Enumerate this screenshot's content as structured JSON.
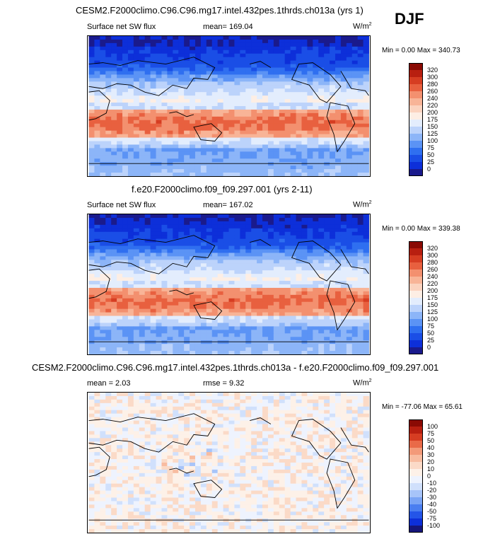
{
  "season": "DJF",
  "panels": [
    {
      "title": "CESM2.F2000climo.C96.C96.mg17.intel.432pes.1thrds.ch013a (yrs 1)",
      "left_label": "Surface net SW flux",
      "center_label": "mean= 169.04",
      "units": "W/m",
      "units_sup": "2",
      "minmax": "Min =   0.00 Max = 340.73",
      "colorbar_labels": [
        "320",
        "300",
        "280",
        "260",
        "240",
        "220",
        "200",
        "175",
        "150",
        "125",
        "100",
        "75",
        "50",
        "25",
        "0"
      ]
    },
    {
      "title": "f.e20.F2000climo.f09_f09.297.001 (yrs 2-11)",
      "left_label": "Surface net SW flux",
      "center_label": "mean= 167.02",
      "units": "W/m",
      "units_sup": "2",
      "minmax": "Min =   0.00 Max = 339.38",
      "colorbar_labels": [
        "320",
        "300",
        "280",
        "260",
        "240",
        "220",
        "200",
        "175",
        "150",
        "125",
        "100",
        "75",
        "50",
        "25",
        "0"
      ]
    },
    {
      "title": "CESM2.F2000climo.C96.C96.mg17.intel.432pes.1thrds.ch013a - f.e20.F2000climo.f09_f09.297.001",
      "left_label": "mean =   2.03",
      "center_label": "rmse =   9.32",
      "units": "W/m",
      "units_sup": "2",
      "minmax": "Min = -77.06 Max =  65.61",
      "colorbar_labels": [
        "100",
        "75",
        "50",
        "40",
        "30",
        "20",
        "10",
        "0",
        "-10",
        "-20",
        "-30",
        "-40",
        "-50",
        "-75",
        "-100"
      ]
    }
  ],
  "colors": {
    "seq": [
      "#f2f2ff",
      "#1a1a8c",
      "#0d2fd9",
      "#1a4ee6",
      "#2f6ff0",
      "#5b93f5",
      "#8cb5f8",
      "#bcd3fb",
      "#e3edfd",
      "#fdeee4",
      "#fbd3bf",
      "#f8b497",
      "#f3906f",
      "#e8603f",
      "#d63d22",
      "#b81f10",
      "#8a0a04"
    ],
    "diff": [
      "#16167a",
      "#0d2fd9",
      "#2455e8",
      "#4a7ef0",
      "#7aa4f5",
      "#a7c4f9",
      "#d0e0fc",
      "#eef3fe",
      "#fdf1e8",
      "#fbdac7",
      "#f8bca0",
      "#f39a79",
      "#e96a48",
      "#d63d22",
      "#b81f10",
      "#8a0a04"
    ]
  },
  "chart_data": [
    {
      "type": "heatmap",
      "title": "CESM2.F2000climo.C96.C96.mg17.intel.432pes.1thrds.ch013a (yrs 1)",
      "variable": "Surface net SW flux",
      "mean": 169.04,
      "min": 0.0,
      "max": 340.73,
      "units": "W/m2",
      "contour_levels": [
        0,
        25,
        50,
        75,
        100,
        125,
        150,
        175,
        200,
        220,
        240,
        260,
        280,
        300,
        320
      ]
    },
    {
      "type": "heatmap",
      "title": "f.e20.F2000climo.f09_f09.297.001 (yrs 2-11)",
      "variable": "Surface net SW flux",
      "mean": 167.02,
      "min": 0.0,
      "max": 339.38,
      "units": "W/m2",
      "contour_levels": [
        0,
        25,
        50,
        75,
        100,
        125,
        150,
        175,
        200,
        220,
        240,
        260,
        280,
        300,
        320
      ]
    },
    {
      "type": "heatmap",
      "title": "CESM2.F2000climo.C96.C96.mg17.intel.432pes.1thrds.ch013a - f.e20.F2000climo.f09_f09.297.001",
      "mean": 2.03,
      "rmse": 9.32,
      "min": -77.06,
      "max": 65.61,
      "units": "W/m2",
      "contour_levels": [
        -100,
        -75,
        -50,
        -40,
        -30,
        -20,
        -10,
        0,
        10,
        20,
        30,
        40,
        50,
        75,
        100
      ]
    }
  ]
}
